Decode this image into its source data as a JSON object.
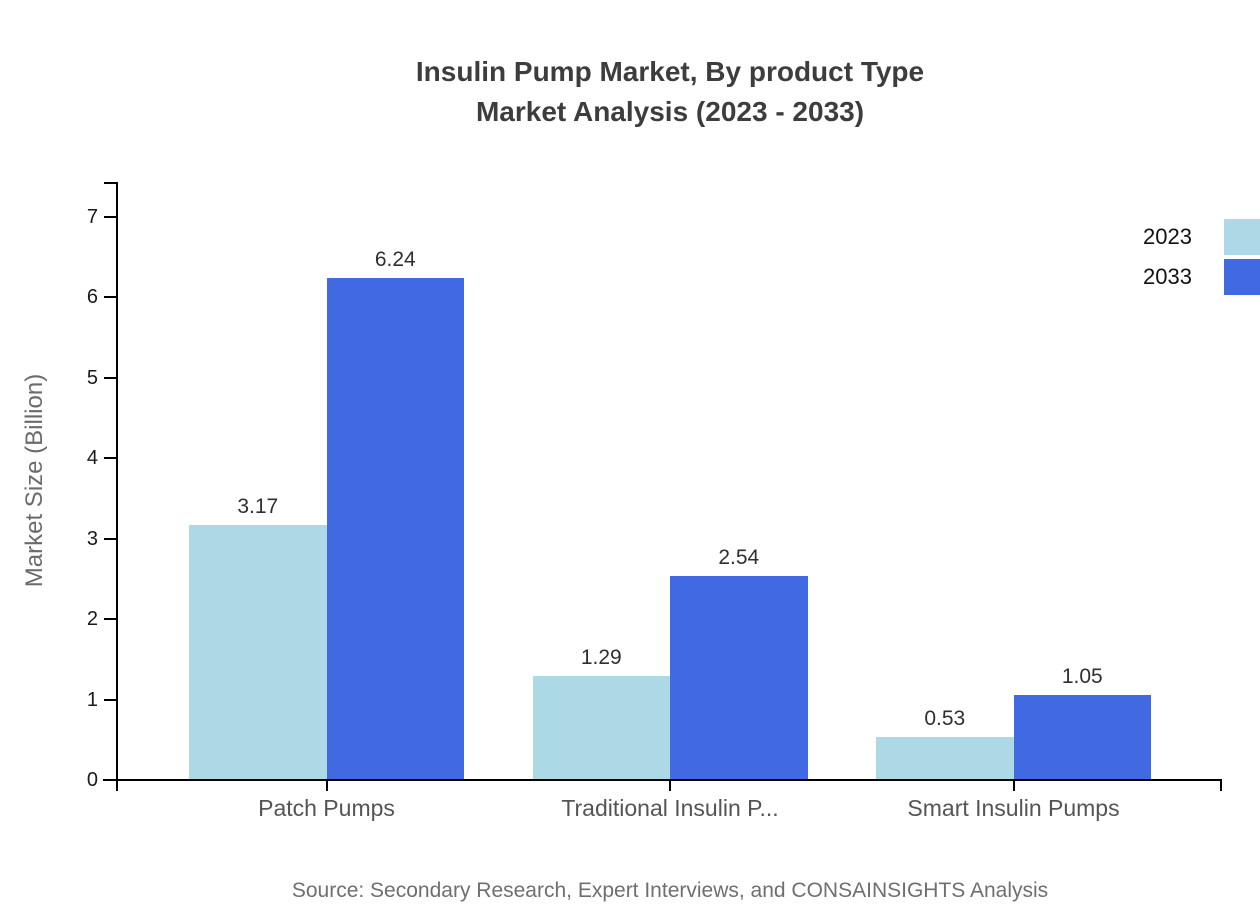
{
  "chart": {
    "title_line1": "Insulin Pump Market, By product Type",
    "title_line2": "Market Analysis (2023 - 2033)"
  },
  "chart_data": {
    "type": "bar",
    "title": "Insulin Pump Market, By product Type Market Analysis (2023 - 2033)",
    "categories": [
      "Patch Pumps",
      "Traditional Insulin P...",
      "Smart Insulin Pumps"
    ],
    "series": [
      {
        "name": "2023",
        "color": "#ADD8E6",
        "values": [
          3.17,
          1.29,
          0.53
        ]
      },
      {
        "name": "2033",
        "color": "#4169E1",
        "values": [
          6.24,
          2.54,
          1.05
        ]
      }
    ],
    "value_labels": [
      "3.17",
      "6.24",
      "1.29",
      "2.54",
      "0.53",
      "1.05"
    ],
    "xlabel": "",
    "ylabel": "Market Size (Billion)",
    "ylim": [
      0,
      7
    ],
    "yticks": [
      0,
      1,
      2,
      3,
      4,
      5,
      6,
      7
    ],
    "grid": false,
    "legend_position": "top-right",
    "legend_entries": [
      "2023",
      "2033"
    ],
    "axis_color": "#000000",
    "source": "Source: Secondary Research, Expert Interviews, and CONSAINSIGHTS Analysis"
  }
}
